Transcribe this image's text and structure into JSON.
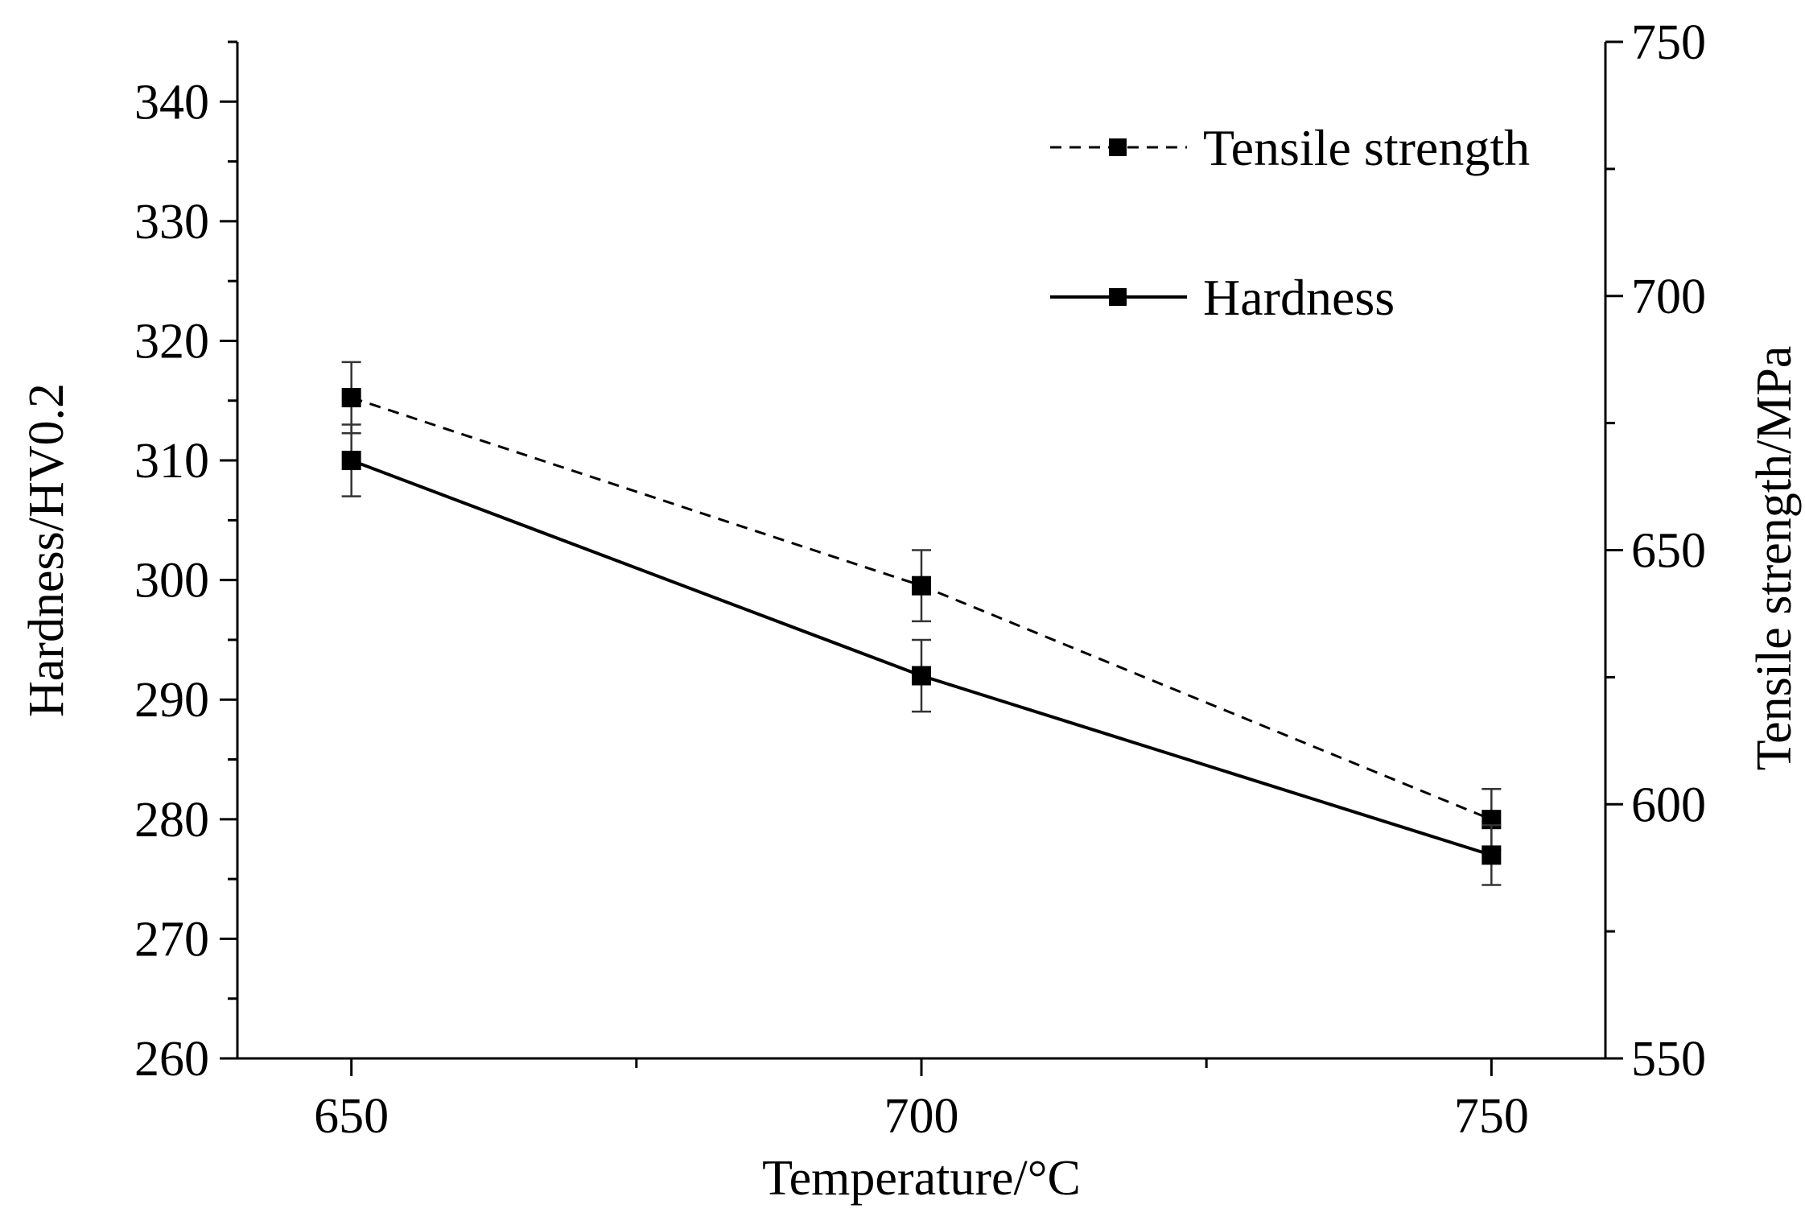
{
  "chart_data": {
    "type": "line",
    "x": [
      650,
      700,
      750
    ],
    "xlabel": "Temperature/°C",
    "xticks": [
      "650",
      "700",
      "750"
    ],
    "xlim": [
      640,
      760
    ],
    "ylabel_left": "Hardness/HV0.2",
    "ylim_left": [
      260,
      345
    ],
    "yticks_left": [
      "260",
      "270",
      "280",
      "290",
      "300",
      "310",
      "320",
      "330",
      "340"
    ],
    "ylabel_right": "Tensile strength/MPa",
    "ylim_right": [
      550,
      750
    ],
    "yticks_right": [
      "550",
      "600",
      "650",
      "700",
      "750"
    ],
    "legend_position": "top-right",
    "series": [
      {
        "name": "Tensile strength",
        "axis": "right",
        "style": "dashed",
        "values": [
          680,
          643,
          597
        ],
        "errors": [
          7,
          7,
          6
        ]
      },
      {
        "name": "Hardness",
        "axis": "left",
        "style": "solid",
        "values": [
          310,
          292,
          277
        ],
        "errors": [
          3,
          3,
          2.5
        ]
      }
    ],
    "colors": {
      "line": "#000000",
      "marker": "#000000",
      "error_bar": "#333333"
    }
  }
}
